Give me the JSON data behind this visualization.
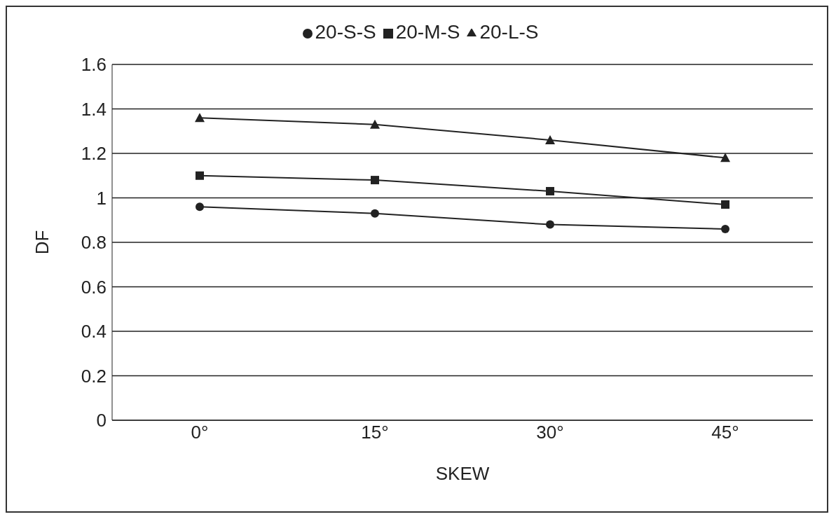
{
  "chart_data": {
    "type": "line",
    "xlabel": "SKEW",
    "ylabel": "DF",
    "categories": [
      "0°",
      "15°",
      "30°",
      "45°"
    ],
    "series": [
      {
        "name": "20-S-S",
        "color": "#222222",
        "marker": "circle",
        "values": [
          0.96,
          0.93,
          0.88,
          0.86
        ]
      },
      {
        "name": "20-M-S",
        "color": "#222222",
        "marker": "square",
        "values": [
          1.1,
          1.08,
          1.03,
          0.97
        ]
      },
      {
        "name": "20-L-S",
        "color": "#222222",
        "marker": "triangle",
        "values": [
          1.36,
          1.33,
          1.26,
          1.18
        ]
      }
    ],
    "ylim": [
      0,
      1.6
    ],
    "yticks": [
      0,
      0.2,
      0.4,
      0.6,
      0.8,
      1,
      1.2,
      1.4,
      1.6
    ],
    "grid": "y",
    "legend": "top",
    "line_style": "solid"
  }
}
